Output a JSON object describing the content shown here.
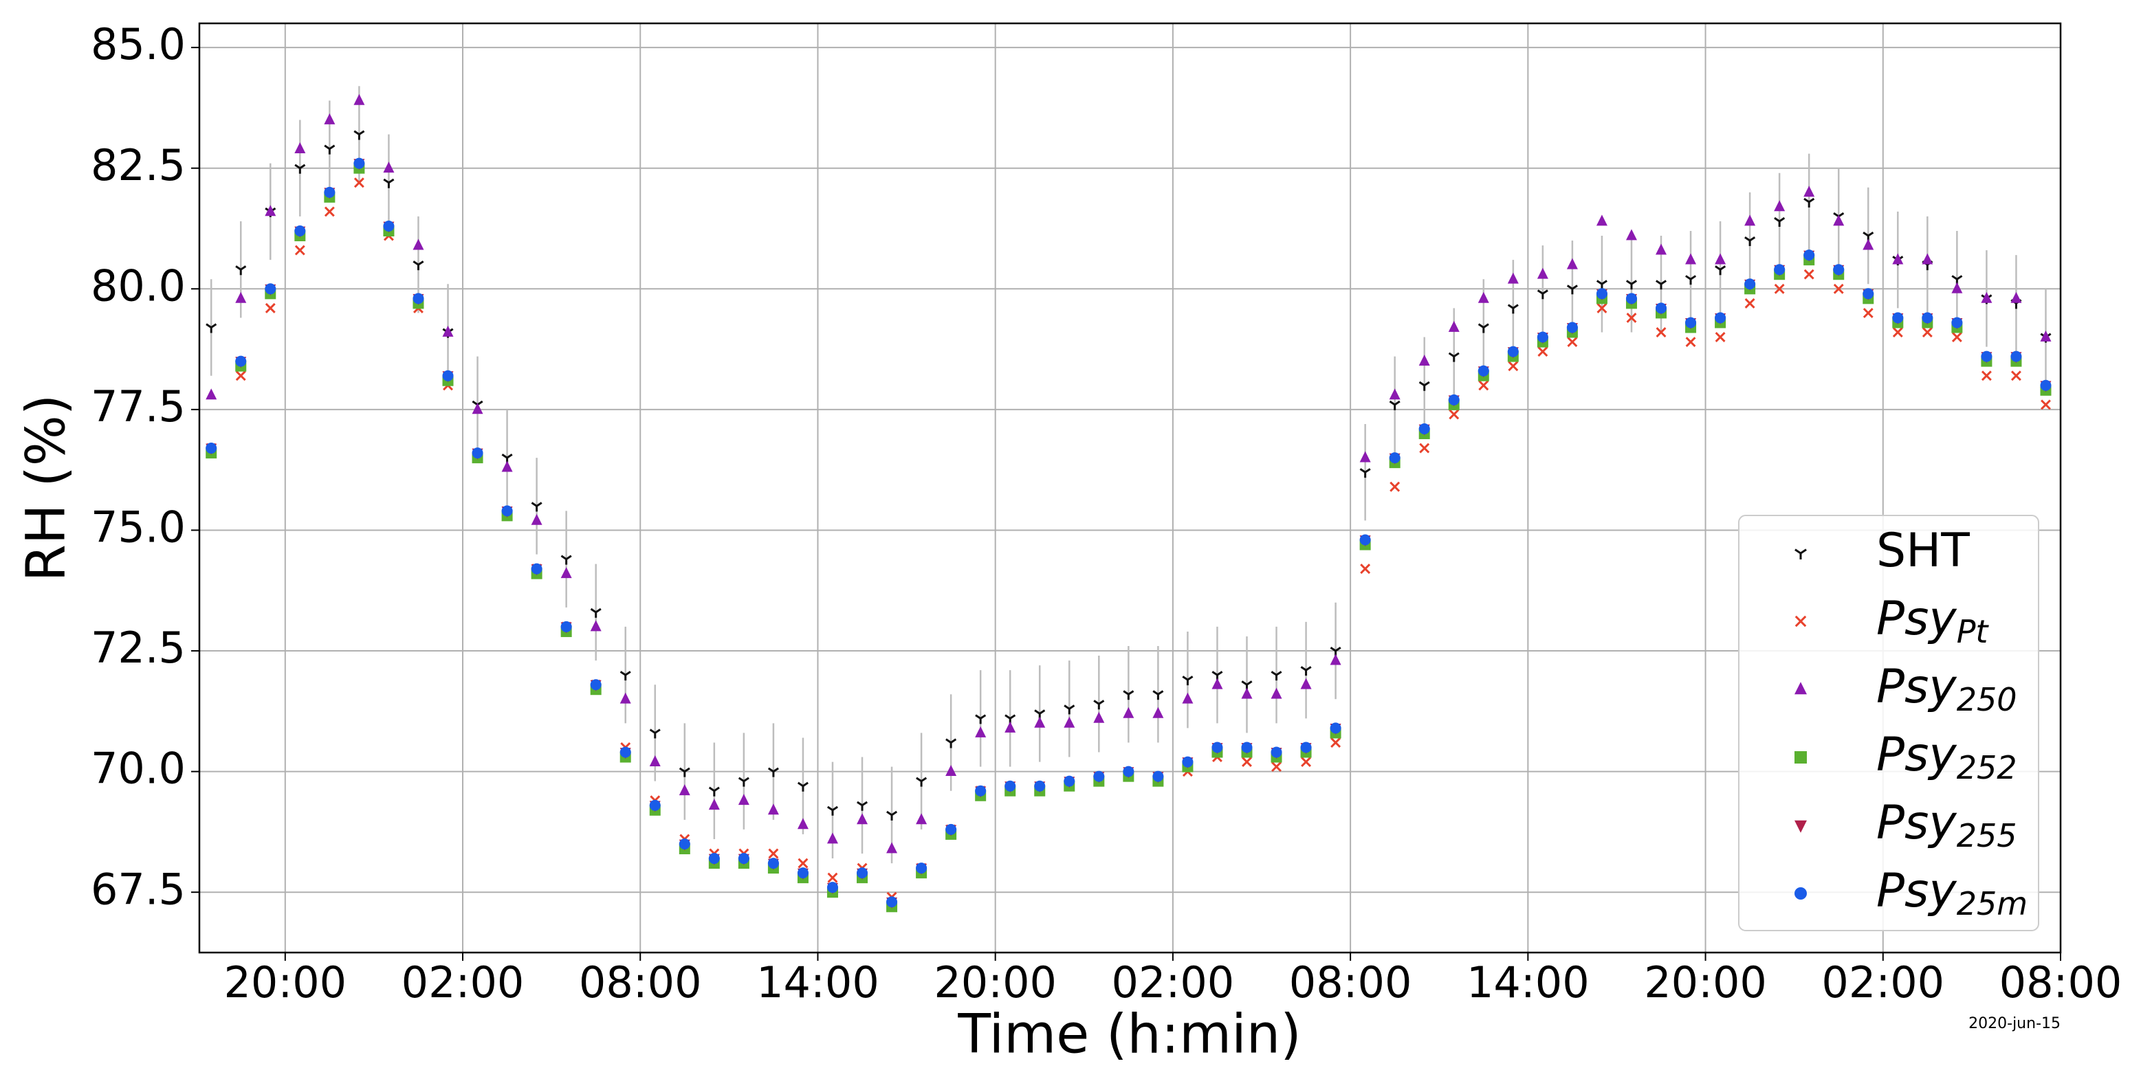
{
  "chart_data": {
    "type": "scatter",
    "x_label": "Time (h:min)",
    "y_label": "RH (%)",
    "annotation": "2020-jun-15",
    "grid": true,
    "legend": "lower right",
    "xlim": [
      17.1,
      80.0
    ],
    "ylim": [
      66.25,
      85.5
    ],
    "xticks": [
      {
        "value": 20,
        "label": "20:00"
      },
      {
        "value": 26,
        "label": "02:00"
      },
      {
        "value": 32,
        "label": "08:00"
      },
      {
        "value": 38,
        "label": "14:00"
      },
      {
        "value": 44,
        "label": "20:00"
      },
      {
        "value": 50,
        "label": "02:00"
      },
      {
        "value": 56,
        "label": "08:00"
      },
      {
        "value": 62,
        "label": "14:00"
      },
      {
        "value": 68,
        "label": "20:00"
      },
      {
        "value": 74,
        "label": "02:00"
      },
      {
        "value": 80,
        "label": "08:00"
      }
    ],
    "yticks": [
      67.5,
      {
        "value": 70,
        "label": "70.0"
      },
      72.5,
      {
        "value": 75,
        "label": "75.0"
      },
      77.5,
      {
        "value": 80,
        "label": "80.0"
      },
      82.5,
      {
        "value": 85,
        "label": "85.0"
      }
    ],
    "x": [
      17.5,
      18.5,
      19.5,
      20.5,
      21.5,
      22.5,
      23.5,
      24.5,
      25.5,
      26.5,
      27.5,
      28.5,
      29.5,
      30.5,
      31.5,
      32.5,
      33.5,
      34.5,
      35.5,
      36.5,
      37.5,
      38.5,
      39.5,
      40.5,
      41.5,
      42.5,
      43.5,
      44.5,
      45.5,
      46.5,
      47.5,
      48.5,
      49.5,
      50.5,
      51.5,
      52.5,
      53.5,
      54.5,
      55.5,
      56.5,
      57.5,
      58.5,
      59.5,
      60.5,
      61.5,
      62.5,
      63.5,
      64.5,
      65.5,
      66.5,
      67.5,
      68.5,
      69.5,
      70.5,
      71.5,
      72.5,
      73.5,
      74.5,
      75.5,
      76.5,
      77.5,
      78.5,
      79.5
    ],
    "series": [
      {
        "name": "SHT",
        "marker": "tri_down",
        "color": "#111111",
        "values": [
          79.2,
          80.4,
          81.6,
          82.5,
          82.9,
          83.2,
          82.2,
          80.5,
          79.1,
          77.6,
          76.5,
          75.5,
          74.4,
          73.3,
          72.0,
          70.8,
          70.0,
          69.6,
          69.8,
          70.0,
          69.7,
          69.2,
          69.3,
          69.1,
          69.8,
          70.6,
          71.1,
          71.1,
          71.2,
          71.3,
          71.4,
          71.6,
          71.6,
          71.9,
          72.0,
          71.8,
          72.0,
          72.1,
          72.5,
          76.2,
          77.6,
          78.0,
          78.6,
          79.2,
          79.6,
          79.9,
          80.0,
          80.1,
          80.1,
          80.1,
          80.2,
          80.4,
          81.0,
          81.4,
          81.8,
          81.5,
          81.1,
          80.6,
          80.5,
          80.2,
          79.8,
          79.7,
          79.0
        ],
        "errors": [
          1,
          1,
          1,
          1,
          1,
          1,
          1,
          1,
          1,
          1,
          1,
          1,
          1,
          1,
          1,
          1,
          1,
          1,
          1,
          1,
          1,
          1,
          1,
          1,
          1,
          1,
          1,
          1,
          1,
          1,
          1,
          1,
          1,
          1,
          1,
          1,
          1,
          1,
          1,
          1,
          1,
          1,
          1,
          1,
          1,
          1,
          1,
          1,
          1,
          1,
          1,
          1,
          1,
          1,
          1,
          1,
          1,
          1,
          1,
          1,
          1,
          1,
          1
        ]
      },
      {
        "name": "Psy",
        "subscript": "Pt",
        "marker": "x",
        "color": "#e8422c",
        "values": [
          76.7,
          78.2,
          79.6,
          80.8,
          81.6,
          82.2,
          81.1,
          79.6,
          78.0,
          76.5,
          75.3,
          74.2,
          73.0,
          71.8,
          70.5,
          69.4,
          68.6,
          68.3,
          68.3,
          68.3,
          68.1,
          67.8,
          68.0,
          67.4,
          68.0,
          68.8,
          69.6,
          69.6,
          69.6,
          69.7,
          69.8,
          69.9,
          69.8,
          70.0,
          70.3,
          70.2,
          70.1,
          70.2,
          70.6,
          74.2,
          75.9,
          76.7,
          77.4,
          78.0,
          78.4,
          78.7,
          78.9,
          79.6,
          79.4,
          79.1,
          78.9,
          79.0,
          79.7,
          80.0,
          80.3,
          80.0,
          79.5,
          79.1,
          79.1,
          79.0,
          78.2,
          78.2,
          77.6
        ]
      },
      {
        "name": "Psy",
        "subscript": "250",
        "marker": "tri_up",
        "color": "#8b1ab0",
        "values": [
          77.8,
          79.8,
          81.6,
          82.9,
          83.5,
          83.9,
          82.5,
          80.9,
          79.1,
          77.5,
          76.3,
          75.2,
          74.1,
          73.0,
          71.5,
          70.2,
          69.6,
          69.3,
          69.4,
          69.2,
          68.9,
          68.6,
          69.0,
          68.4,
          69.0,
          70.0,
          70.8,
          70.9,
          71.0,
          71.0,
          71.1,
          71.2,
          71.2,
          71.5,
          71.8,
          71.6,
          71.6,
          71.8,
          72.3,
          76.5,
          77.8,
          78.5,
          79.2,
          79.8,
          80.2,
          80.3,
          80.5,
          81.4,
          81.1,
          80.8,
          80.6,
          80.6,
          81.4,
          81.7,
          82.0,
          81.4,
          80.9,
          80.6,
          80.6,
          80.0,
          79.8,
          79.8,
          79.0
        ]
      },
      {
        "name": "Psy",
        "subscript": "252",
        "marker": "square",
        "color": "#5ab030",
        "values": [
          76.6,
          78.4,
          79.9,
          81.1,
          81.9,
          82.5,
          81.2,
          79.7,
          78.1,
          76.5,
          75.3,
          74.1,
          72.9,
          71.7,
          70.3,
          69.2,
          68.4,
          68.1,
          68.1,
          68.0,
          67.8,
          67.5,
          67.8,
          67.2,
          67.9,
          68.7,
          69.5,
          69.6,
          69.6,
          69.7,
          69.8,
          69.9,
          69.8,
          70.1,
          70.4,
          70.4,
          70.3,
          70.4,
          70.8,
          74.7,
          76.4,
          77.0,
          77.6,
          78.2,
          78.6,
          78.9,
          79.1,
          79.8,
          79.7,
          79.5,
          79.2,
          79.3,
          80.0,
          80.3,
          80.6,
          80.3,
          79.8,
          79.3,
          79.3,
          79.2,
          78.5,
          78.5,
          77.9
        ]
      },
      {
        "name": "Psy",
        "subscript": "255",
        "marker": "tri_down_filled",
        "color": "#b0204a",
        "values": [
          76.7,
          78.5,
          80.0,
          81.2,
          82.0,
          82.6,
          81.3,
          79.8,
          78.2,
          76.6,
          75.4,
          74.2,
          73.0,
          71.8,
          70.4,
          69.3,
          68.5,
          68.2,
          68.2,
          68.1,
          67.9,
          67.6,
          67.9,
          67.3,
          68.0,
          68.8,
          69.6,
          69.7,
          69.7,
          69.8,
          69.9,
          70.0,
          69.9,
          70.2,
          70.5,
          70.5,
          70.4,
          70.5,
          70.9,
          74.8,
          76.5,
          77.1,
          77.7,
          78.3,
          78.7,
          79.0,
          79.2,
          79.9,
          79.8,
          79.6,
          79.3,
          79.4,
          80.1,
          80.4,
          80.7,
          80.4,
          79.9,
          79.4,
          79.4,
          79.3,
          78.6,
          78.6,
          78.0
        ]
      },
      {
        "name": "Psy",
        "subscript": "25m",
        "marker": "circle",
        "color": "#1a5ce8",
        "values": [
          76.7,
          78.5,
          80.0,
          81.2,
          82.0,
          82.6,
          81.3,
          79.8,
          78.2,
          76.6,
          75.4,
          74.2,
          73.0,
          71.8,
          70.4,
          69.3,
          68.5,
          68.2,
          68.2,
          68.1,
          67.9,
          67.6,
          67.9,
          67.3,
          68.0,
          68.8,
          69.6,
          69.7,
          69.7,
          69.8,
          69.9,
          70.0,
          69.9,
          70.2,
          70.5,
          70.5,
          70.4,
          70.5,
          70.9,
          74.8,
          76.5,
          77.1,
          77.7,
          78.3,
          78.7,
          79.0,
          79.2,
          79.9,
          79.8,
          79.6,
          79.3,
          79.4,
          80.1,
          80.4,
          80.7,
          80.4,
          79.9,
          79.4,
          79.4,
          79.3,
          78.6,
          78.6,
          78.0
        ]
      }
    ]
  }
}
